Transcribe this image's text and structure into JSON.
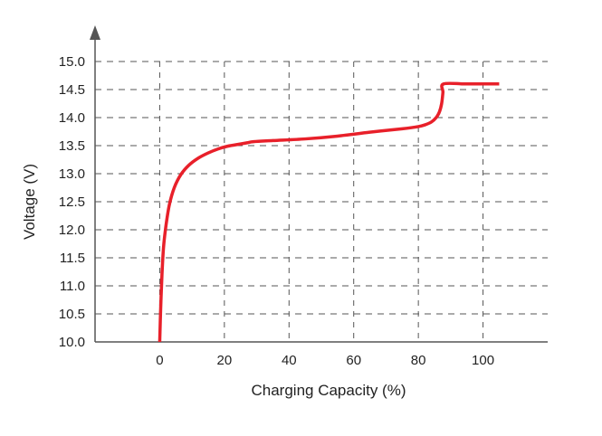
{
  "chart_data": {
    "type": "line",
    "title": "",
    "xlabel": "Charging Capacity (%)",
    "ylabel": "Voltage (V)",
    "xlim": [
      -20,
      120
    ],
    "ylim": [
      10.0,
      15.0
    ],
    "xticks": [
      "0",
      "20",
      "40",
      "60",
      "80",
      "100"
    ],
    "yticks": [
      "10.0",
      "10.5",
      "11.0",
      "11.5",
      "12.0",
      "12.5",
      "13.0",
      "13.5",
      "14.0",
      "14.5",
      "15.0"
    ],
    "grid": true,
    "series": [
      {
        "color": "#e8202a",
        "x": [
          0,
          0.3,
          0.7,
          1.2,
          2,
          3,
          4.5,
          6.5,
          9,
          12,
          15,
          18,
          21,
          24,
          27,
          29,
          35,
          45,
          55,
          65,
          75,
          80,
          82,
          84,
          85.5,
          86.5,
          87.2,
          87.6,
          87.8,
          95,
          105
        ],
        "y": [
          10.0,
          10.6,
          11.2,
          11.7,
          12.1,
          12.45,
          12.75,
          12.98,
          13.15,
          13.28,
          13.37,
          13.44,
          13.49,
          13.52,
          13.55,
          13.57,
          13.59,
          13.62,
          13.67,
          13.74,
          13.8,
          13.84,
          13.87,
          13.92,
          14.0,
          14.1,
          14.25,
          14.45,
          14.6,
          14.6,
          14.6
        ]
      }
    ]
  }
}
